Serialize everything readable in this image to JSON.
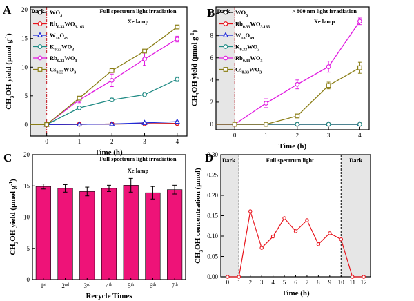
{
  "chart_data": [
    {
      "id": "A",
      "type": "line",
      "panel_label": "A",
      "annotation_lines": [
        "Full spectrum light irradiation",
        "Xe lamp"
      ],
      "region_label": "Dark",
      "xlabel": "Time (h)",
      "ylabel": "CH3OH yield (μmol g-1)",
      "xlim": [
        -0.5,
        4.3
      ],
      "ylim": [
        -2,
        20.5
      ],
      "xticks": [
        0,
        1,
        2,
        3,
        4
      ],
      "yticks": [
        0,
        5,
        10,
        15,
        20
      ],
      "legend_position": "top-left",
      "series": [
        {
          "name": "WO3",
          "legend_parts": [
            [
              "WO",
              false
            ],
            [
              "3",
              true
            ]
          ],
          "color": "#111111",
          "marker": "circle",
          "x": [
            -0.5,
            0,
            1,
            2,
            3,
            4
          ],
          "y": [
            0,
            0,
            0.05,
            0.1,
            0.15,
            0.2
          ],
          "err": [
            0,
            0,
            0,
            0,
            0,
            0
          ]
        },
        {
          "name": "Rb0.33WO3.165",
          "legend_parts": [
            [
              "Rb",
              false
            ],
            [
              "0.33",
              true
            ],
            [
              "WO",
              false
            ],
            [
              "3.165",
              true
            ]
          ],
          "color": "#e8141c",
          "marker": "circle",
          "x": [
            -0.5,
            0,
            1,
            2,
            3,
            4
          ],
          "y": [
            0,
            0,
            0.05,
            0.1,
            0.15,
            0.2
          ],
          "err": [
            0,
            0,
            0,
            0,
            0,
            0
          ]
        },
        {
          "name": "W18O49",
          "legend_parts": [
            [
              "W",
              false
            ],
            [
              "18",
              true
            ],
            [
              "O",
              false
            ],
            [
              "49",
              true
            ]
          ],
          "color": "#1f2bd8",
          "marker": "triangle",
          "x": [
            -0.5,
            0,
            1,
            2,
            3,
            4
          ],
          "y": [
            0,
            0,
            0.05,
            0.1,
            0.3,
            0.5
          ],
          "err": [
            0,
            0,
            0,
            0,
            0.1,
            0.1
          ]
        },
        {
          "name": "K0.33WO3",
          "legend_parts": [
            [
              "K",
              false
            ],
            [
              "0.33",
              true
            ],
            [
              "WO",
              false
            ],
            [
              "3",
              true
            ]
          ],
          "color": "#1f8a84",
          "marker": "circle",
          "x": [
            -0.5,
            0,
            1,
            2,
            3,
            4
          ],
          "y": [
            0,
            0,
            2.9,
            4.3,
            5.2,
            7.9
          ],
          "err": [
            0,
            0,
            0.2,
            0.3,
            0.4,
            0.4
          ]
        },
        {
          "name": "Rb0.33WO3",
          "legend_parts": [
            [
              "Rb",
              false
            ],
            [
              "0.33",
              true
            ],
            [
              "WO",
              false
            ],
            [
              "3",
              true
            ]
          ],
          "color": "#e019e0",
          "marker": "circle",
          "x": [
            -0.5,
            0,
            1,
            2,
            3,
            4
          ],
          "y": [
            0,
            0,
            4.3,
            7.7,
            11.4,
            14.9
          ],
          "err": [
            0,
            0,
            0.5,
            1.1,
            1.1,
            0.5
          ]
        },
        {
          "name": "Cs0.33WO3",
          "legend_parts": [
            [
              "Cs",
              false
            ],
            [
              "0.33",
              true
            ],
            [
              "WO",
              false
            ],
            [
              "3",
              true
            ]
          ],
          "color": "#8a7d14",
          "marker": "square",
          "x": [
            -0.5,
            0,
            1,
            2,
            3,
            4
          ],
          "y": [
            0,
            0,
            4.6,
            9.4,
            12.8,
            17.0
          ],
          "err": [
            0,
            0,
            0.3,
            0.3,
            0.3,
            0.3
          ]
        }
      ]
    },
    {
      "id": "B",
      "type": "line",
      "panel_label": "B",
      "annotation_lines": [
        "> 800 nm light irradiation",
        "Xe lamp"
      ],
      "region_label": "Dark",
      "xlabel": "Time (h)",
      "ylabel": "CH3OH yield (μmol g-1)",
      "xlim": [
        -0.6,
        4.3
      ],
      "ylim": [
        -0.5,
        10.6
      ],
      "xticks": [
        0,
        1,
        2,
        3,
        4
      ],
      "yticks": [
        0,
        2,
        4,
        6,
        8,
        10
      ],
      "legend_position": "top-left",
      "series": [
        {
          "name": "WO3",
          "legend_parts": [
            [
              "WO",
              false
            ],
            [
              "3",
              true
            ]
          ],
          "color": "#111111",
          "marker": "circle",
          "x": [
            -0.6,
            0,
            1,
            2,
            3,
            4
          ],
          "y": [
            0,
            0,
            0,
            0,
            0,
            0
          ],
          "err": [
            0,
            0,
            0,
            0,
            0,
            0
          ]
        },
        {
          "name": "Rb0.33WO3.165",
          "legend_parts": [
            [
              "Rb",
              false
            ],
            [
              "0.33",
              true
            ],
            [
              "WO",
              false
            ],
            [
              "3.165",
              true
            ]
          ],
          "color": "#e8141c",
          "marker": "circle",
          "x": [
            -0.6,
            0,
            1,
            2,
            3,
            4
          ],
          "y": [
            0,
            0,
            0,
            0,
            0,
            0
          ],
          "err": [
            0,
            0,
            0,
            0,
            0,
            0
          ]
        },
        {
          "name": "W18O49",
          "legend_parts": [
            [
              "W",
              false
            ],
            [
              "18",
              true
            ],
            [
              "O",
              false
            ],
            [
              "49",
              true
            ]
          ],
          "color": "#1f2bd8",
          "marker": "triangle",
          "x": [
            -0.6,
            0,
            1,
            2,
            3,
            4
          ],
          "y": [
            0,
            0,
            0,
            0,
            0,
            0
          ],
          "err": [
            0,
            0,
            0,
            0,
            0,
            0
          ]
        },
        {
          "name": "K0.33WO3",
          "legend_parts": [
            [
              "K",
              false
            ],
            [
              "0.33",
              true
            ],
            [
              "WO",
              false
            ],
            [
              "3",
              true
            ]
          ],
          "color": "#1f8a84",
          "marker": "circle",
          "x": [
            -0.6,
            0,
            1,
            2,
            3,
            4
          ],
          "y": [
            0,
            0,
            0,
            0,
            0,
            0
          ],
          "err": [
            0,
            0,
            0,
            0,
            0,
            0
          ]
        },
        {
          "name": "Rb0.33WO3",
          "legend_parts": [
            [
              "Rb",
              false
            ],
            [
              "0.33",
              true
            ],
            [
              "WO",
              false
            ],
            [
              "3",
              true
            ]
          ],
          "color": "#e019e0",
          "marker": "circle",
          "x": [
            -0.6,
            0,
            1,
            2,
            3,
            4
          ],
          "y": [
            0,
            0,
            1.9,
            3.6,
            5.2,
            9.3
          ],
          "err": [
            0,
            0,
            0.4,
            0.4,
            0.5,
            0.3
          ]
        },
        {
          "name": "Cs0.33WO3",
          "legend_parts": [
            [
              "Cs",
              false
            ],
            [
              "0.33",
              true
            ],
            [
              "WO",
              false
            ],
            [
              "3",
              true
            ]
          ],
          "color": "#8a7d14",
          "marker": "square",
          "x": [
            -0.6,
            0,
            1,
            2,
            3,
            4
          ],
          "y": [
            0,
            0,
            0,
            0.75,
            3.5,
            5.1
          ],
          "err": [
            0,
            0,
            0,
            0,
            0.3,
            0.5
          ]
        }
      ]
    },
    {
      "id": "C",
      "type": "bar",
      "panel_label": "C",
      "annotation_lines": [
        "Full spectrum light irradiation",
        "Xe lamp"
      ],
      "xlabel": "Recycle Times",
      "ylabel": "CH3OH yield (μmol g-1)",
      "ylim": [
        0,
        20
      ],
      "yticks": [
        0,
        5,
        10,
        15,
        20
      ],
      "bar_color": "#ee1378",
      "categories": [
        [
          "1",
          "st"
        ],
        [
          "2",
          "nd"
        ],
        [
          "3",
          "rd"
        ],
        [
          "4",
          "th"
        ],
        [
          "5",
          "th"
        ],
        [
          "6",
          "th"
        ],
        [
          "7",
          "th"
        ]
      ],
      "values": [
        14.9,
        14.6,
        14.1,
        14.6,
        15.1,
        13.9,
        14.4
      ],
      "err": [
        0.4,
        0.6,
        0.7,
        0.5,
        1.1,
        1.0,
        0.7
      ]
    },
    {
      "id": "D",
      "type": "line",
      "panel_label": "D",
      "region_labels": {
        "left": "Dark",
        "middle": "Full spectrum light",
        "right": "Dark"
      },
      "xlabel": "Time (h)",
      "ylabel": "CH3OH concentration (μmol)",
      "xlim": [
        -0.6,
        12.6
      ],
      "ylim": [
        0,
        0.3
      ],
      "xticks": [
        0,
        1,
        2,
        3,
        4,
        5,
        6,
        7,
        8,
        9,
        10,
        11,
        12
      ],
      "yticks": [
        0.0,
        0.05,
        0.1,
        0.15,
        0.2,
        0.25,
        0.3
      ],
      "color": "#e8141c",
      "x": [
        0,
        1,
        2,
        3,
        4,
        5,
        6,
        7,
        8,
        9,
        10,
        11,
        12
      ],
      "y": [
        0,
        0,
        0.161,
        0.071,
        0.099,
        0.144,
        0.112,
        0.139,
        0.08,
        0.107,
        0.092,
        0,
        0
      ]
    }
  ]
}
